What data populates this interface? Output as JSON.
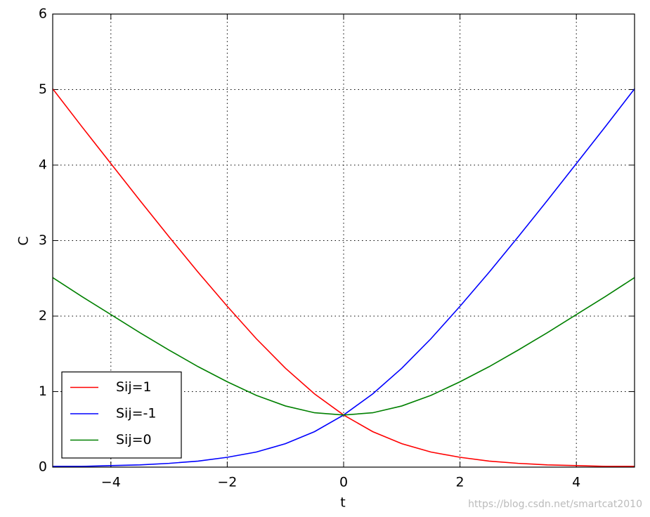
{
  "chart_data": {
    "type": "line",
    "xlabel": "t",
    "ylabel": "C",
    "x": [
      -5,
      -4.5,
      -4,
      -3.5,
      -3,
      -2.5,
      -2,
      -1.5,
      -1,
      -0.5,
      0,
      0.5,
      1,
      1.5,
      2,
      2.5,
      3,
      3.5,
      4,
      4.5,
      5
    ],
    "series": [
      {
        "name": "Sij=1",
        "color": "#ff0000",
        "values": [
          5.01,
          4.51,
          4.02,
          3.53,
          3.05,
          2.58,
          2.13,
          1.7,
          1.31,
          0.97,
          0.69,
          0.47,
          0.31,
          0.2,
          0.13,
          0.08,
          0.05,
          0.03,
          0.02,
          0.01,
          0.01
        ]
      },
      {
        "name": "Sij=-1",
        "color": "#0000ff",
        "values": [
          0.01,
          0.01,
          0.02,
          0.03,
          0.05,
          0.08,
          0.13,
          0.2,
          0.31,
          0.47,
          0.69,
          0.97,
          1.31,
          1.7,
          2.13,
          2.58,
          3.05,
          3.53,
          4.02,
          4.51,
          5.01
        ]
      },
      {
        "name": "Sij=0",
        "color": "#008000",
        "values": [
          2.51,
          2.26,
          2.02,
          1.78,
          1.55,
          1.33,
          1.13,
          0.95,
          0.81,
          0.72,
          0.69,
          0.72,
          0.81,
          0.95,
          1.13,
          1.33,
          1.55,
          1.78,
          2.02,
          2.26,
          2.51
        ]
      }
    ],
    "xlim": [
      -5,
      5
    ],
    "xticks": [
      {
        "value": -4,
        "label": "−4"
      },
      {
        "value": -2,
        "label": "−2"
      },
      0,
      2,
      4
    ],
    "ylim": [
      0,
      6
    ],
    "yticks": [
      0,
      1,
      2,
      3,
      4,
      5,
      6
    ],
    "grid": true,
    "legend": "lower left",
    "watermark": "https://blog.csdn.net/smartcat2010"
  }
}
